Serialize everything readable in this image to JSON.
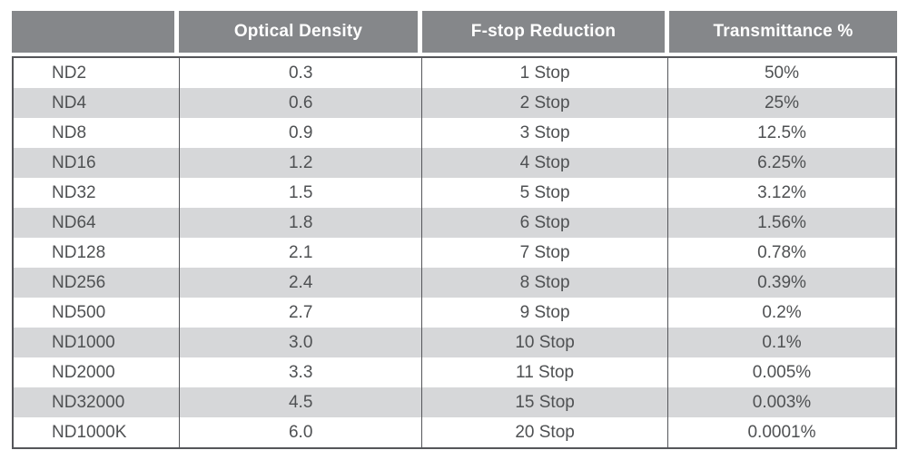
{
  "chart_data": {
    "type": "table",
    "columns": [
      "",
      "Optical Density",
      "F-stop Reduction",
      "Transmittance %"
    ],
    "rows": [
      [
        "ND2",
        "0.3",
        "1 Stop",
        "50%"
      ],
      [
        "ND4",
        "0.6",
        "2 Stop",
        "25%"
      ],
      [
        "ND8",
        "0.9",
        "3 Stop",
        "12.5%"
      ],
      [
        "ND16",
        "1.2",
        "4 Stop",
        "6.25%"
      ],
      [
        "ND32",
        "1.5",
        "5 Stop",
        "3.12%"
      ],
      [
        "ND64",
        "1.8",
        "6 Stop",
        "1.56%"
      ],
      [
        "ND128",
        "2.1",
        "7 Stop",
        "0.78%"
      ],
      [
        "ND256",
        "2.4",
        "8 Stop",
        "0.39%"
      ],
      [
        "ND500",
        "2.7",
        "9 Stop",
        "0.2%"
      ],
      [
        "ND1000",
        "3.0",
        "10 Stop",
        "0.1%"
      ],
      [
        "ND2000",
        "3.3",
        "11 Stop",
        "0.005%"
      ],
      [
        "ND32000",
        "4.5",
        "15 Stop",
        "0.003%"
      ],
      [
        "ND1000K",
        "6.0",
        "20 Stop",
        "0.0001%"
      ]
    ],
    "layout": {
      "legend": "none",
      "grid": "alternating-row-shading",
      "header_position": "top"
    }
  },
  "colors": {
    "page_bg": "#ffffff",
    "header_bg": "#85878a",
    "header_text": "#ffffff",
    "alt_row_bg": "#d6d7d9",
    "border": "#55565a",
    "body_text": "#4f5153"
  }
}
